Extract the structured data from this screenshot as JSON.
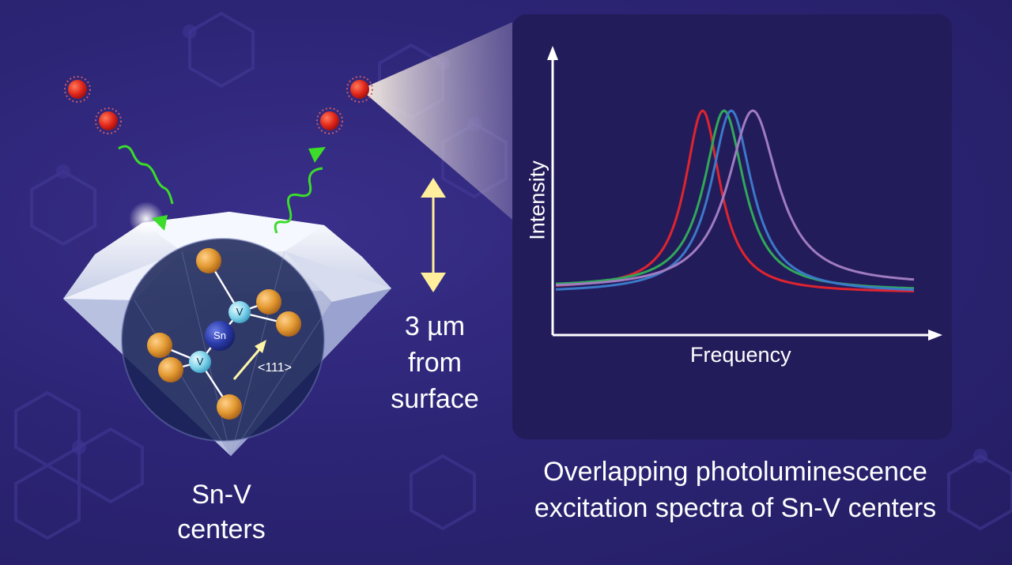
{
  "diamond": {
    "atom_labels": {
      "sn": "Sn",
      "v1": "V",
      "v2": "V"
    },
    "direction_label": "<111>"
  },
  "labels": {
    "defect_name": [
      "Sn-V",
      "centers"
    ],
    "depth": [
      "3 µm",
      "from",
      "surface"
    ],
    "caption": [
      "Overlapping photoluminescence",
      "excitation spectra of Sn-V centers"
    ]
  },
  "chart_data": {
    "type": "line",
    "xlabel": "Frequency",
    "ylabel": "Intensity",
    "title": "",
    "series": [
      {
        "color": "#e0242e",
        "center": 0.41,
        "width": 0.06,
        "baseline": 0.05,
        "tail": 0.03
      },
      {
        "color": "#2fa85a",
        "center": 0.47,
        "width": 0.068,
        "baseline": 0.06,
        "tail": 0.04
      },
      {
        "color": "#3b79c9",
        "center": 0.49,
        "width": 0.07,
        "baseline": 0.03,
        "tail": 0.03
      },
      {
        "color": "#a07cc0",
        "center": 0.55,
        "width": 0.085,
        "baseline": 0.05,
        "tail": 0.07
      }
    ]
  }
}
